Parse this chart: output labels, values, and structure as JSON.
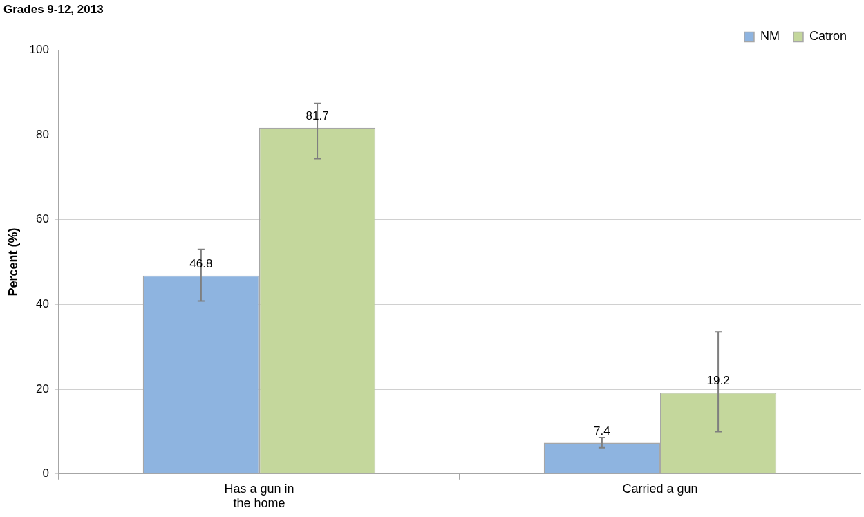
{
  "chart_data": {
    "type": "bar",
    "title": "Grades 9-12, 2013",
    "ylabel": "Percent (%)",
    "categories": [
      "Has a gun in the home",
      "Carried a gun"
    ],
    "series": [
      {
        "name": "NM",
        "color": "#8eb4e0",
        "values": [
          46.8,
          7.4
        ],
        "errors": [
          [
            40.8,
            53.0
          ],
          [
            6.2,
            8.6
          ]
        ]
      },
      {
        "name": "Catron",
        "color": "#c4d79c",
        "values": [
          81.7,
          19.2
        ],
        "errors": [
          [
            74.4,
            87.4
          ],
          [
            10.0,
            33.5
          ]
        ]
      }
    ],
    "ylim": [
      0,
      100
    ],
    "yticks": [
      0,
      20,
      40,
      60,
      80,
      100
    ],
    "grid": "y",
    "legend": "top right",
    "data_labels": true
  }
}
